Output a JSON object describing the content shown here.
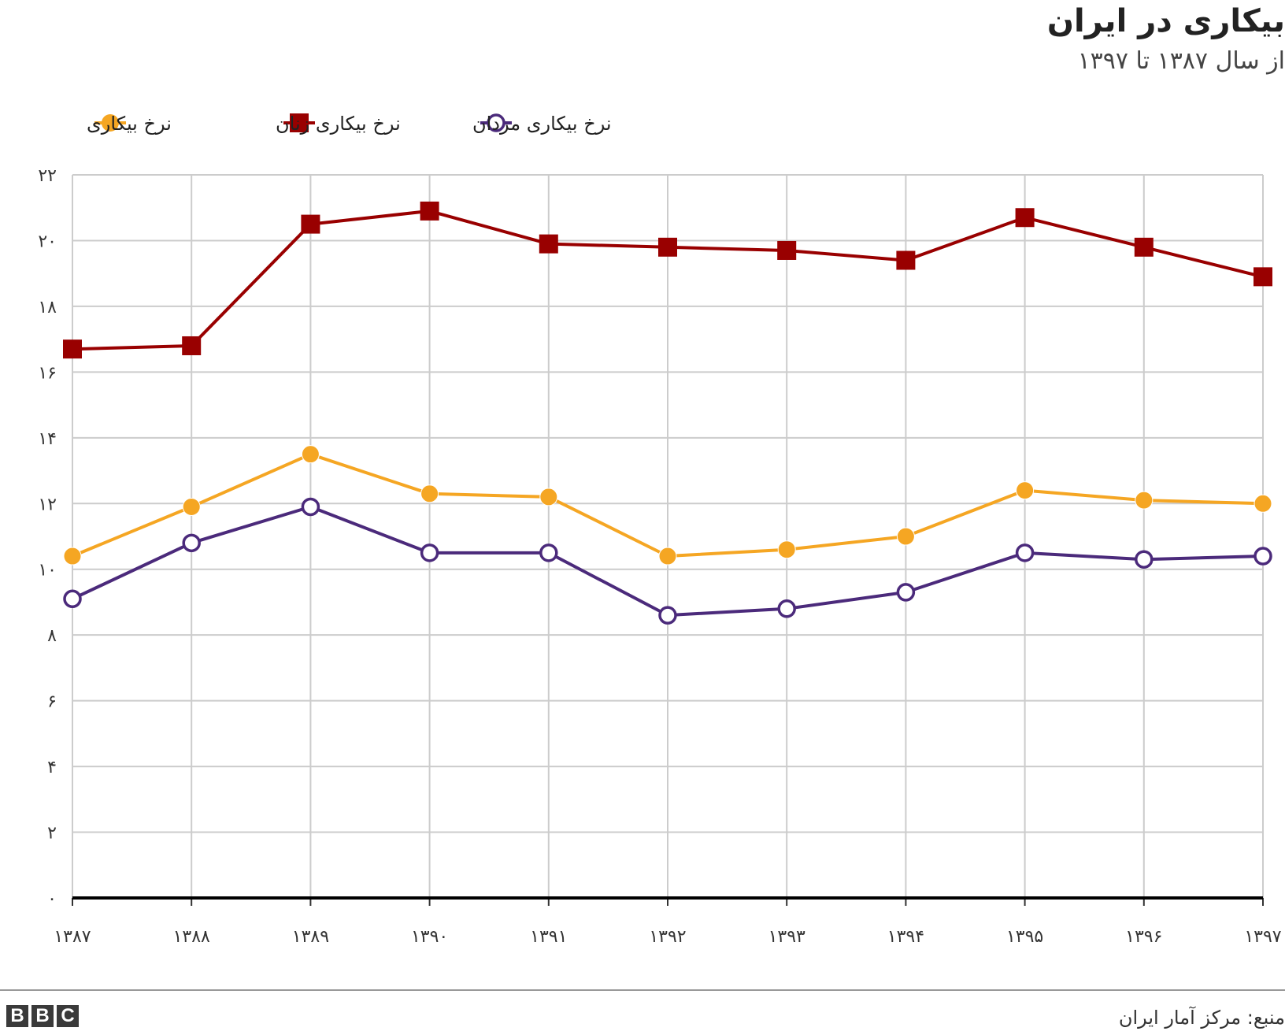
{
  "header": {
    "title": "بیکاری در ایران",
    "subtitle": "از سال ۱۳۸۷ تا ۱۳۹۷"
  },
  "footer": {
    "source": "منبع: مرکز آمار ایران",
    "logo_letters": [
      "B",
      "B",
      "C"
    ]
  },
  "colors": {
    "men": "#990000",
    "women": "#f5a623",
    "total": "#4b2a7b",
    "grid": "#cccccc",
    "baseline": "#000000"
  },
  "chart_data": {
    "type": "line",
    "x": [
      "۱۳۸۷",
      "۱۳۸۸",
      "۱۳۸۹",
      "۱۳۹۰",
      "۱۳۹۱",
      "۱۳۹۲",
      "۱۳۹۳",
      "۱۳۹۴",
      "۱۳۹۵",
      "۱۳۹۶",
      "۱۳۹۷"
    ],
    "ylim": [
      0,
      22
    ],
    "yticks": [
      0,
      2,
      4,
      6,
      8,
      10,
      12,
      14,
      16,
      18,
      20,
      22
    ],
    "ytick_labels": [
      "۰",
      "۲",
      "۴",
      "۶",
      "۸",
      "۱۰",
      "۱۲",
      "۱۴",
      "۱۶",
      "۱۸",
      "۲۰",
      "۲۲"
    ],
    "grid": true,
    "legend_position": "top",
    "series": [
      {
        "key": "total",
        "name": "نرخ بیکاری",
        "marker": "circle-filled",
        "color": "#f5a623",
        "values": [
          10.4,
          11.9,
          13.5,
          12.3,
          12.2,
          10.4,
          10.6,
          11.0,
          12.4,
          12.1,
          12.0
        ]
      },
      {
        "key": "women",
        "name": "نرخ بیکاری زنان",
        "marker": "square",
        "color": "#990000",
        "values": [
          16.7,
          16.8,
          20.5,
          20.9,
          19.9,
          19.8,
          19.7,
          19.4,
          20.7,
          19.8,
          18.9
        ]
      },
      {
        "key": "men",
        "name": "نرخ بیکاری مردان",
        "marker": "circle-open",
        "color": "#4b2a7b",
        "values": [
          9.1,
          10.8,
          11.9,
          10.5,
          10.5,
          8.6,
          8.8,
          9.3,
          10.5,
          10.3,
          10.4
        ]
      }
    ]
  }
}
